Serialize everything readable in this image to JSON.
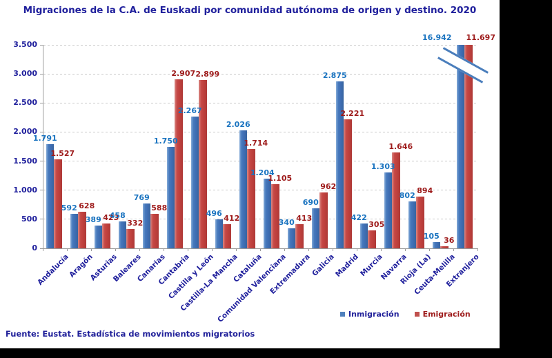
{
  "title": "Migraciones de la C.A. de Euskadi por comunidad autónoma de origen y destino. 2020",
  "footer": "Fuente: Eustat. Estadística de movimientos migratorios",
  "legend": [
    {
      "label": "Inmigración",
      "marker_color": "#4F81BD",
      "text_color": "#21219A"
    },
    {
      "label": "Emigración",
      "marker_color": "#C0504D",
      "text_color": "#9E1B1B"
    }
  ],
  "y_axis": {
    "ticks": [
      "0",
      "500",
      "1.000",
      "1.500",
      "2.000",
      "2.500",
      "3.000",
      "3.500"
    ],
    "max": 3500,
    "interval": 500
  },
  "chart_data": {
    "type": "bar",
    "title": "Migraciones de la C.A. de Euskadi por comunidad autónoma de origen y destino. 2020",
    "xlabel": "",
    "ylabel": "",
    "ylim": [
      0,
      3500
    ],
    "grid": "dashed-horizontal",
    "legend_position": "bottom",
    "broken_axis_note": "Extranjero bars exceed the axis and are clipped with a diagonal break mark; their values are printed above the plot.",
    "categories": [
      "Andalucía",
      "Aragón",
      "Asturias",
      "Baleares",
      "Canarias",
      "Cantabria",
      "Castilla y León",
      "Castilla-La Mancha",
      "Cataluña",
      "Comunidad Valenciana",
      "Extremadura",
      "Galicia",
      "Madrid",
      "Murcia",
      "Navarra",
      "Rioja (La)",
      "Ceuta-Melilla",
      "Extranjero"
    ],
    "series": [
      {
        "name": "Inmigración",
        "color": "#4F81BD",
        "label_color": "#1B74C0",
        "values": [
          1791,
          592,
          389,
          458,
          769,
          1750,
          2267,
          496,
          2026,
          1204,
          340,
          690,
          2875,
          422,
          1303,
          802,
          105,
          16942
        ],
        "labels": [
          "1.791",
          "592",
          "389",
          "458",
          "769",
          "1.750",
          "2.267",
          "496",
          "2.026",
          "1.204",
          "340",
          "690",
          "2.875",
          "422",
          "1.303",
          "802",
          "105",
          "16.942"
        ]
      },
      {
        "name": "Emigración",
        "color": "#C0504D",
        "label_color": "#9E1B1B",
        "values": [
          1527,
          628,
          423,
          332,
          588,
          2907,
          2899,
          412,
          1714,
          1105,
          413,
          962,
          2221,
          305,
          1646,
          894,
          36,
          11697
        ],
        "labels": [
          "1.527",
          "628",
          "423",
          "332",
          "588",
          "2.907",
          "2.899",
          "412",
          "1.714",
          "1.105",
          "413",
          "962",
          "2.221",
          "305",
          "1.646",
          "894",
          "36",
          "11.697"
        ]
      }
    ]
  },
  "colors": {
    "title_text": "#1F1F9C",
    "axis_line": "#9A9A9A",
    "gridline": "#C8C8C8",
    "background": "#FFFFFF",
    "outer_matte": "#000000"
  }
}
